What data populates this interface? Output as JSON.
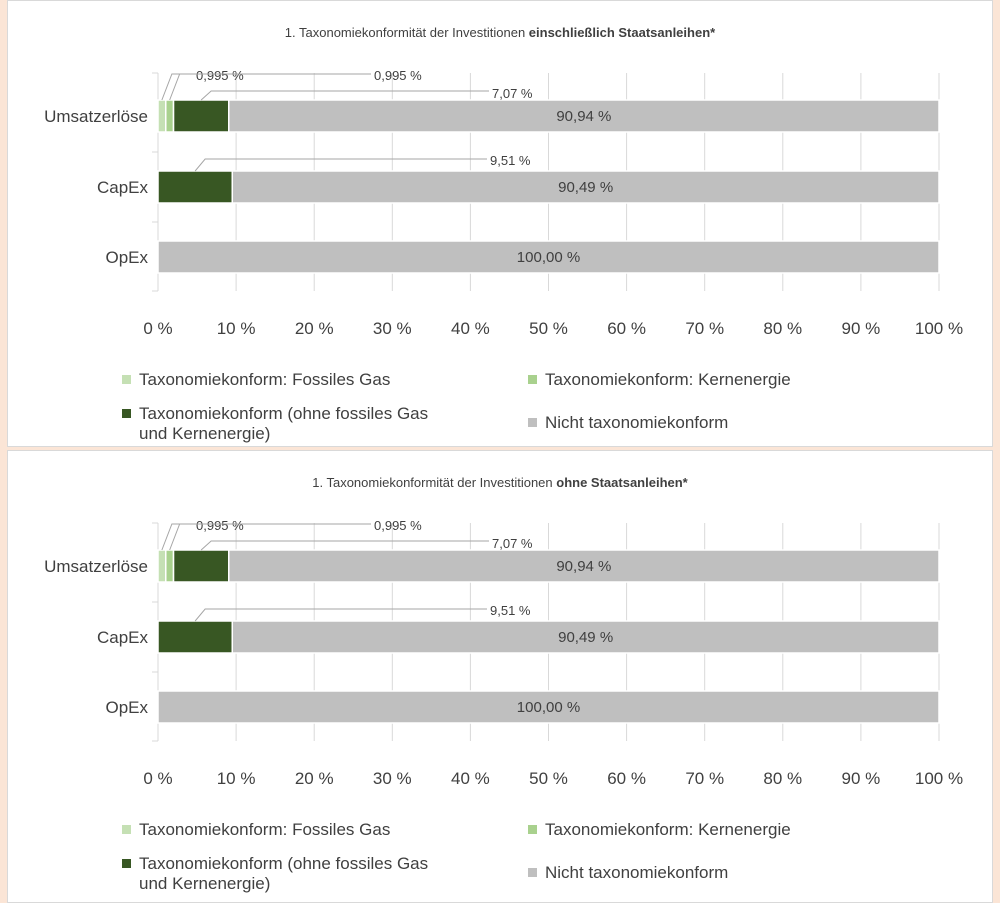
{
  "colors": {
    "fossil_gas": "#c5e0b4",
    "nuclear": "#a9d18e",
    "aligned_other": "#385723",
    "not_aligned": "#bfbfbf",
    "grid": "#d9d9d9",
    "leader": "#a6a6a6",
    "background": "#fbe5d6"
  },
  "chart_data": [
    {
      "type": "bar",
      "orientation": "horizontal",
      "stacked": true,
      "title": {
        "prefix": "1. Taxonomiekonformität der Investitionen ",
        "bold": "einschließlich Staatsanleihen*"
      },
      "categories": [
        "Umsatzerlöse",
        "CapEx",
        "OpEx"
      ],
      "series": [
        {
          "name": "Taxonomiekonform: Fossiles Gas",
          "color_key": "fossil_gas",
          "values": [
            0.995,
            0,
            0
          ],
          "labels": [
            "0,995 %",
            "",
            ""
          ]
        },
        {
          "name": "Taxonomiekonform: Kernenergie",
          "color_key": "nuclear",
          "values": [
            0.995,
            0,
            0
          ],
          "labels": [
            "0,995 %",
            "",
            ""
          ]
        },
        {
          "name_line1": "Taxonomiekonform (ohne fossiles Gas",
          "name_line2": "und Kernenergie)",
          "color_key": "aligned_other",
          "values": [
            7.07,
            9.51,
            0
          ],
          "labels": [
            "7,07 %",
            "9,51 %",
            ""
          ]
        },
        {
          "name": "Nicht taxonomiekonform",
          "color_key": "not_aligned",
          "values": [
            90.94,
            90.49,
            100.0
          ],
          "labels": [
            "90,94 %",
            "90,49 %",
            "100,00 %"
          ]
        }
      ],
      "xlim": [
        0,
        100
      ],
      "x_ticks": [
        "0 %",
        "10 %",
        "20 %",
        "30 %",
        "40 %",
        "50 %",
        "60 %",
        "70 %",
        "80 %",
        "90 %",
        "100 %"
      ],
      "grid": true,
      "legend_position": "bottom"
    },
    {
      "type": "bar",
      "orientation": "horizontal",
      "stacked": true,
      "title": {
        "prefix": "1. Taxonomiekonformität der Investitionen ",
        "bold": "ohne Staatsanleihen*"
      },
      "categories": [
        "Umsatzerlöse",
        "CapEx",
        "OpEx"
      ],
      "series": [
        {
          "name": "Taxonomiekonform: Fossiles Gas",
          "color_key": "fossil_gas",
          "values": [
            0.995,
            0,
            0
          ],
          "labels": [
            "0,995 %",
            "",
            ""
          ]
        },
        {
          "name": "Taxonomiekonform: Kernenergie",
          "color_key": "nuclear",
          "values": [
            0.995,
            0,
            0
          ],
          "labels": [
            "0,995 %",
            "",
            ""
          ]
        },
        {
          "name_line1": "Taxonomiekonform (ohne fossiles Gas",
          "name_line2": "und Kernenergie)",
          "color_key": "aligned_other",
          "values": [
            7.07,
            9.51,
            0
          ],
          "labels": [
            "7,07 %",
            "9,51 %",
            ""
          ]
        },
        {
          "name": "Nicht taxonomiekonform",
          "color_key": "not_aligned",
          "values": [
            90.94,
            90.49,
            100.0
          ],
          "labels": [
            "90,94 %",
            "90,49 %",
            "100,00 %"
          ]
        }
      ],
      "xlim": [
        0,
        100
      ],
      "x_ticks": [
        "0 %",
        "10 %",
        "20 %",
        "30 %",
        "40 %",
        "50 %",
        "60 %",
        "70 %",
        "80 %",
        "90 %",
        "100 %"
      ],
      "grid": true,
      "legend_position": "bottom"
    }
  ]
}
